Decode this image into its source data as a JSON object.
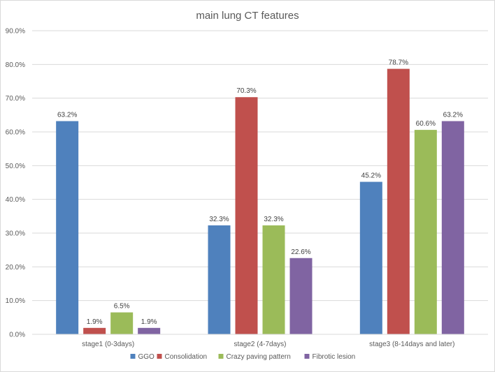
{
  "chart_data": {
    "type": "bar",
    "title": "main lung CT features",
    "xlabel": "",
    "ylabel": "",
    "categories": [
      "stage1 (0-3days)",
      "stage2 (4-7days)",
      "stage3 (8-14days and later)"
    ],
    "series": [
      {
        "name": "GGO",
        "color": "#4f81bd",
        "values": [
          63.2,
          32.3,
          45.2
        ],
        "labels": [
          "63.2%",
          "32.3%",
          "45.2%"
        ]
      },
      {
        "name": "Consolidation",
        "color": "#c0504d",
        "values": [
          1.9,
          70.3,
          78.7
        ],
        "labels": [
          "1.9%",
          "70.3%",
          "78.7%"
        ]
      },
      {
        "name": "Crazy paving pattern",
        "color": "#9bbb59",
        "values": [
          6.5,
          32.3,
          60.6
        ],
        "labels": [
          "6.5%",
          "32.3%",
          "60.6%"
        ]
      },
      {
        "name": "Fibrotic lesion",
        "color": "#8064a2",
        "values": [
          1.9,
          22.6,
          63.2
        ],
        "labels": [
          "1.9%",
          "22.6%",
          "63.2%"
        ]
      }
    ],
    "ylim": [
      0,
      90
    ],
    "yticks": [
      0,
      10,
      20,
      30,
      40,
      50,
      60,
      70,
      80,
      90
    ],
    "ytick_labels": [
      "0.0%",
      "10.0%",
      "20.0%",
      "30.0%",
      "40.0%",
      "50.0%",
      "60.0%",
      "70.0%",
      "80.0%",
      "90.0%"
    ],
    "grid": true,
    "legend": "bottom"
  }
}
